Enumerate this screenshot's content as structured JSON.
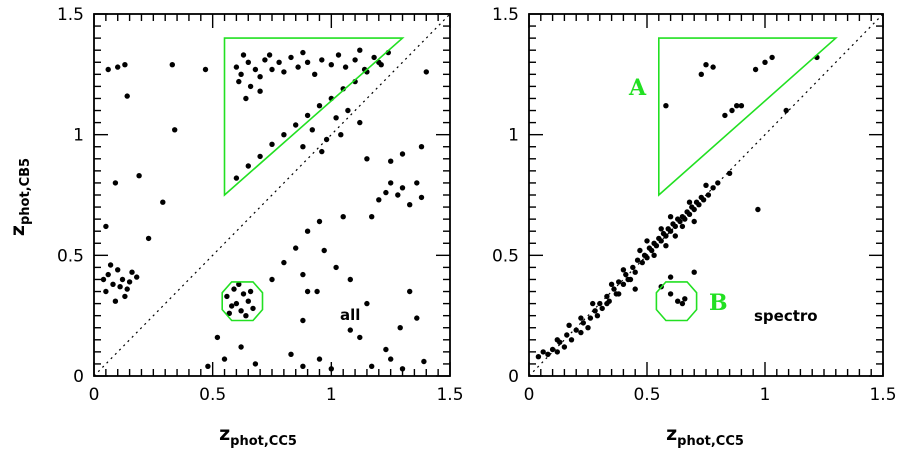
{
  "chart_data": [
    {
      "type": "scatter",
      "panel": "left",
      "xlabel": "z",
      "xlabel_sub": "phot,CC5",
      "ylabel": "z",
      "ylabel_sub": "phot,CB5",
      "xlim": [
        0,
        1.5
      ],
      "ylim": [
        0,
        1.5
      ],
      "xticks": [
        "0",
        "0.5",
        "1",
        "1.5"
      ],
      "yticks": [
        "0",
        "0.5",
        "1",
        "1.5"
      ],
      "annotation": "all",
      "point_color": "#000000",
      "region_color": "#22e022",
      "diagonal": [
        [
          0,
          0
        ],
        [
          1.5,
          1.5
        ]
      ],
      "region_a": [
        [
          0.55,
          0.75
        ],
        [
          1.3,
          1.4
        ],
        [
          0.55,
          1.4
        ]
      ],
      "region_b": [
        [
          0.58,
          0.23
        ],
        [
          0.67,
          0.23
        ],
        [
          0.71,
          0.275
        ],
        [
          0.71,
          0.345
        ],
        [
          0.67,
          0.39
        ],
        [
          0.58,
          0.39
        ],
        [
          0.54,
          0.345
        ],
        [
          0.54,
          0.275
        ]
      ],
      "points": [
        [
          0.06,
          0.42
        ],
        [
          0.08,
          0.38
        ],
        [
          0.1,
          0.44
        ],
        [
          0.12,
          0.4
        ],
        [
          0.14,
          0.36
        ],
        [
          0.16,
          0.43
        ],
        [
          0.05,
          0.35
        ],
        [
          0.09,
          0.31
        ],
        [
          0.13,
          0.33
        ],
        [
          0.07,
          0.46
        ],
        [
          0.11,
          0.37
        ],
        [
          0.15,
          0.39
        ],
        [
          0.04,
          0.4
        ],
        [
          0.18,
          0.41
        ],
        [
          0.06,
          1.27
        ],
        [
          0.1,
          1.28
        ],
        [
          0.13,
          1.29
        ],
        [
          0.14,
          1.16
        ],
        [
          0.33,
          1.29
        ],
        [
          0.47,
          1.27
        ],
        [
          0.34,
          1.02
        ],
        [
          0.09,
          0.8
        ],
        [
          0.19,
          0.83
        ],
        [
          0.05,
          0.62
        ],
        [
          0.23,
          0.57
        ],
        [
          0.29,
          0.72
        ],
        [
          0.6,
          1.28
        ],
        [
          0.62,
          1.25
        ],
        [
          0.65,
          1.3
        ],
        [
          0.68,
          1.27
        ],
        [
          0.7,
          1.24
        ],
        [
          0.72,
          1.31
        ],
        [
          0.75,
          1.27
        ],
        [
          0.78,
          1.3
        ],
        [
          0.8,
          1.26
        ],
        [
          0.83,
          1.32
        ],
        [
          0.86,
          1.28
        ],
        [
          0.9,
          1.3
        ],
        [
          0.93,
          1.25
        ],
        [
          0.96,
          1.31
        ],
        [
          1.0,
          1.29
        ],
        [
          1.03,
          1.33
        ],
        [
          1.06,
          1.28
        ],
        [
          1.1,
          1.31
        ],
        [
          1.14,
          1.27
        ],
        [
          1.18,
          1.32
        ],
        [
          1.21,
          1.29
        ],
        [
          1.24,
          1.34
        ],
        [
          0.63,
          1.33
        ],
        [
          0.74,
          1.33
        ],
        [
          0.88,
          1.34
        ],
        [
          1.12,
          1.35
        ],
        [
          0.66,
          1.2
        ],
        [
          0.7,
          1.18
        ],
        [
          0.64,
          1.15
        ],
        [
          0.61,
          1.22
        ],
        [
          0.6,
          0.82
        ],
        [
          0.65,
          0.87
        ],
        [
          0.7,
          0.91
        ],
        [
          0.75,
          0.96
        ],
        [
          0.8,
          1.0
        ],
        [
          0.85,
          1.04
        ],
        [
          0.9,
          1.08
        ],
        [
          0.95,
          1.12
        ],
        [
          1.0,
          1.15
        ],
        [
          1.05,
          1.19
        ],
        [
          1.1,
          1.22
        ],
        [
          1.15,
          1.26
        ],
        [
          1.2,
          1.3
        ],
        [
          0.92,
          1.02
        ],
        [
          0.98,
          0.98
        ],
        [
          1.02,
          1.07
        ],
        [
          1.07,
          1.1
        ],
        [
          1.12,
          1.05
        ],
        [
          0.88,
          0.95
        ],
        [
          0.96,
          0.93
        ],
        [
          1.04,
          1.0
        ],
        [
          0.57,
          0.26
        ],
        [
          0.6,
          0.3
        ],
        [
          0.63,
          0.34
        ],
        [
          0.59,
          0.36
        ],
        [
          0.62,
          0.27
        ],
        [
          0.65,
          0.31
        ],
        [
          0.67,
          0.28
        ],
        [
          0.56,
          0.33
        ],
        [
          0.61,
          0.38
        ],
        [
          0.64,
          0.25
        ],
        [
          0.58,
          0.29
        ],
        [
          0.66,
          0.35
        ],
        [
          0.75,
          0.4
        ],
        [
          0.8,
          0.47
        ],
        [
          0.85,
          0.53
        ],
        [
          0.9,
          0.6
        ],
        [
          0.95,
          0.64
        ],
        [
          1.05,
          0.66
        ],
        [
          0.97,
          0.52
        ],
        [
          1.02,
          0.45
        ],
        [
          0.9,
          0.35
        ],
        [
          0.88,
          0.42
        ],
        [
          0.94,
          0.35
        ],
        [
          1.08,
          0.4
        ],
        [
          1.17,
          0.66
        ],
        [
          1.2,
          0.73
        ],
        [
          1.23,
          0.76
        ],
        [
          1.25,
          0.8
        ],
        [
          1.28,
          0.75
        ],
        [
          1.3,
          0.78
        ],
        [
          1.33,
          0.71
        ],
        [
          1.36,
          0.8
        ],
        [
          1.38,
          0.74
        ],
        [
          1.15,
          0.9
        ],
        [
          1.25,
          0.89
        ],
        [
          1.3,
          0.92
        ],
        [
          1.4,
          1.26
        ],
        [
          1.38,
          0.95
        ],
        [
          1.08,
          0.19
        ],
        [
          1.12,
          0.16
        ],
        [
          1.23,
          0.11
        ],
        [
          1.25,
          0.07
        ],
        [
          1.29,
          0.2
        ],
        [
          1.36,
          0.24
        ],
        [
          1.39,
          0.06
        ],
        [
          1.3,
          0.03
        ],
        [
          1.0,
          0.03
        ],
        [
          0.95,
          0.07
        ],
        [
          0.88,
          0.04
        ],
        [
          0.83,
          0.09
        ],
        [
          0.68,
          0.05
        ],
        [
          0.62,
          0.12
        ],
        [
          0.55,
          0.07
        ],
        [
          0.48,
          0.04
        ],
        [
          1.17,
          0.04
        ],
        [
          1.33,
          0.35
        ],
        [
          0.88,
          0.23
        ],
        [
          1.15,
          0.3
        ],
        [
          0.52,
          0.16
        ]
      ]
    },
    {
      "type": "scatter",
      "panel": "right",
      "xlabel": "z",
      "xlabel_sub": "phot,CC5",
      "ylabel": "",
      "ylabel_sub": "",
      "xlim": [
        0,
        1.5
      ],
      "ylim": [
        0,
        1.5
      ],
      "xticks": [
        "0",
        "0.5",
        "1",
        "1.5"
      ],
      "yticks": [
        "0",
        "0.5",
        "1",
        "1.5"
      ],
      "annotation": "spectro",
      "region_a_label": "A",
      "region_b_label": "B",
      "point_color": "#000000",
      "region_color": "#22e022",
      "diagonal": [
        [
          0,
          0
        ],
        [
          1.5,
          1.5
        ]
      ],
      "region_a": [
        [
          0.55,
          0.75
        ],
        [
          1.3,
          1.4
        ],
        [
          0.55,
          1.4
        ]
      ],
      "region_b": [
        [
          0.58,
          0.23
        ],
        [
          0.67,
          0.23
        ],
        [
          0.71,
          0.275
        ],
        [
          0.71,
          0.345
        ],
        [
          0.67,
          0.39
        ],
        [
          0.58,
          0.39
        ],
        [
          0.54,
          0.345
        ],
        [
          0.54,
          0.275
        ]
      ],
      "points": [
        [
          0.04,
          0.08
        ],
        [
          0.06,
          0.1
        ],
        [
          0.08,
          0.09
        ],
        [
          0.1,
          0.11
        ],
        [
          0.12,
          0.1
        ],
        [
          0.13,
          0.14
        ],
        [
          0.15,
          0.12
        ],
        [
          0.16,
          0.17
        ],
        [
          0.18,
          0.15
        ],
        [
          0.2,
          0.19
        ],
        [
          0.22,
          0.18
        ],
        [
          0.23,
          0.22
        ],
        [
          0.25,
          0.2
        ],
        [
          0.26,
          0.24
        ],
        [
          0.28,
          0.27
        ],
        [
          0.29,
          0.25
        ],
        [
          0.3,
          0.3
        ],
        [
          0.31,
          0.28
        ],
        [
          0.33,
          0.33
        ],
        [
          0.34,
          0.31
        ],
        [
          0.36,
          0.36
        ],
        [
          0.37,
          0.34
        ],
        [
          0.38,
          0.39
        ],
        [
          0.4,
          0.38
        ],
        [
          0.41,
          0.42
        ],
        [
          0.42,
          0.4
        ],
        [
          0.44,
          0.45
        ],
        [
          0.45,
          0.43
        ],
        [
          0.46,
          0.48
        ],
        [
          0.48,
          0.47
        ],
        [
          0.49,
          0.5
        ],
        [
          0.5,
          0.49
        ],
        [
          0.51,
          0.53
        ],
        [
          0.52,
          0.52
        ],
        [
          0.53,
          0.55
        ],
        [
          0.54,
          0.54
        ],
        [
          0.55,
          0.57
        ],
        [
          0.56,
          0.56
        ],
        [
          0.57,
          0.59
        ],
        [
          0.58,
          0.58
        ],
        [
          0.59,
          0.61
        ],
        [
          0.6,
          0.6
        ],
        [
          0.61,
          0.63
        ],
        [
          0.62,
          0.62
        ],
        [
          0.63,
          0.65
        ],
        [
          0.64,
          0.64
        ],
        [
          0.65,
          0.66
        ],
        [
          0.66,
          0.65
        ],
        [
          0.67,
          0.68
        ],
        [
          0.68,
          0.67
        ],
        [
          0.69,
          0.7
        ],
        [
          0.7,
          0.69
        ],
        [
          0.71,
          0.72
        ],
        [
          0.72,
          0.71
        ],
        [
          0.73,
          0.74
        ],
        [
          0.74,
          0.73
        ],
        [
          0.76,
          0.75
        ],
        [
          0.78,
          0.78
        ],
        [
          0.8,
          0.8
        ],
        [
          0.75,
          0.79
        ],
        [
          0.35,
          0.38
        ],
        [
          0.38,
          0.34
        ],
        [
          0.43,
          0.4
        ],
        [
          0.47,
          0.52
        ],
        [
          0.5,
          0.56
        ],
        [
          0.53,
          0.5
        ],
        [
          0.56,
          0.61
        ],
        [
          0.58,
          0.54
        ],
        [
          0.62,
          0.58
        ],
        [
          0.65,
          0.62
        ],
        [
          0.68,
          0.72
        ],
        [
          0.7,
          0.64
        ],
        [
          0.33,
          0.3
        ],
        [
          0.27,
          0.3
        ],
        [
          0.22,
          0.24
        ],
        [
          0.17,
          0.21
        ],
        [
          0.12,
          0.15
        ],
        [
          0.45,
          0.36
        ],
        [
          0.4,
          0.44
        ],
        [
          0.6,
          0.66
        ],
        [
          0.56,
          0.37
        ],
        [
          0.6,
          0.34
        ],
        [
          0.63,
          0.31
        ],
        [
          0.65,
          0.3
        ],
        [
          0.6,
          0.41
        ],
        [
          0.7,
          0.43
        ],
        [
          0.66,
          0.32
        ],
        [
          0.58,
          1.12
        ],
        [
          0.73,
          1.25
        ],
        [
          0.75,
          1.29
        ],
        [
          0.78,
          1.28
        ],
        [
          0.83,
          1.08
        ],
        [
          0.86,
          1.1
        ],
        [
          0.88,
          1.12
        ],
        [
          0.9,
          1.12
        ],
        [
          0.96,
          1.27
        ],
        [
          1.0,
          1.3
        ],
        [
          1.03,
          1.32
        ],
        [
          1.22,
          1.32
        ],
        [
          1.09,
          1.1
        ],
        [
          0.97,
          0.69
        ],
        [
          0.85,
          0.84
        ]
      ]
    }
  ]
}
